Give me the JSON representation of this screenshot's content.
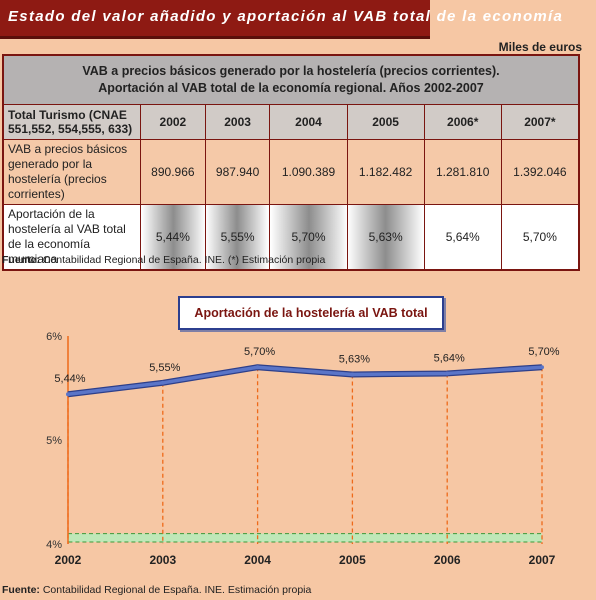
{
  "header": {
    "title": "Estado del valor añadido y aportación al VAB total de la economía"
  },
  "table": {
    "units": "Miles de euros",
    "caption_line1": "VAB a precios básicos generado por la hostelería (precios corrientes).",
    "caption_line2": "Aportación al VAB total de la economía regional. Años 2002-2007",
    "row_header": "Total Turismo (CNAE 551,552, 554,555, 633)",
    "years": [
      "2002",
      "2003",
      "2004",
      "2005",
      "2006*",
      "2007*"
    ],
    "vab_label": "VAB a precios básicos generado por la hostelería (precios corrientes)",
    "vab_values": [
      "890.966",
      "987.940",
      "1.090.389",
      "1.182.482",
      "1.281.810",
      "1.392.046"
    ],
    "aportacion_label": "Aportación de la hostelería al VAB total de la economía murciana",
    "aportacion_values": [
      "5,44%",
      "5,55%",
      "5,70%",
      "5,63%",
      "5,64%",
      "5,70%"
    ]
  },
  "source1": {
    "label": "Fuente:",
    "text": " Contabilidad Regional de España. INE. (*) Estimación propia"
  },
  "source2": {
    "label": "Fuente:",
    "text": " Contabilidad Regional de España. INE. Estimación propia"
  },
  "chart_data": {
    "type": "line",
    "title": "Aportación de la hostelería al VAB total",
    "x": [
      "2002",
      "2003",
      "2004",
      "2005",
      "2006",
      "2007"
    ],
    "series": [
      {
        "values": [
          5.44,
          5.55,
          5.7,
          5.63,
          5.64,
          5.7
        ]
      }
    ],
    "data_labels": [
      "5,44%",
      "5,55%",
      "5,70%",
      "5,63%",
      "5,64%",
      "5,70%"
    ],
    "y_ticks": [
      "4%",
      "5%",
      "6%"
    ],
    "ylim": [
      4,
      6
    ],
    "line_color": "#5a75c8",
    "guide_color": "#ee6a1a",
    "band_color": "#bfe8b8"
  }
}
